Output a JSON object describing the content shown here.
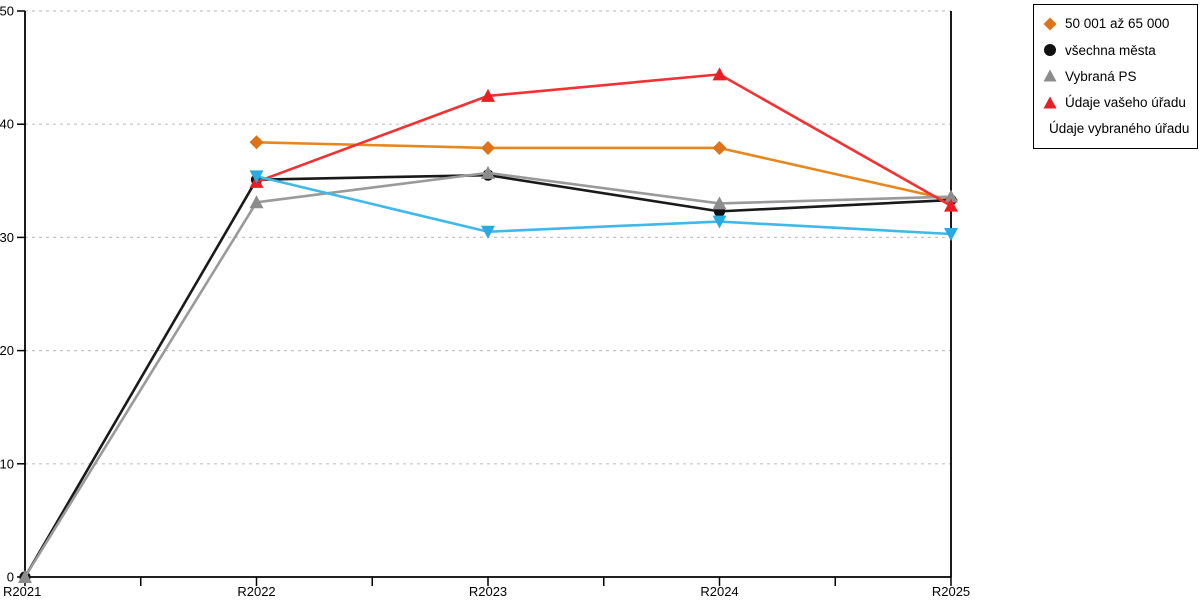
{
  "chart_data": {
    "type": "line",
    "categories": [
      "R2021",
      "R2022",
      "R2023",
      "R2024",
      "R2025"
    ],
    "series": [
      {
        "name": "50 001 až 65 000",
        "marker": "diamond",
        "color": "#DE731A",
        "line_color": "#E8871E",
        "values": [
          null,
          38.4,
          37.9,
          37.9,
          33.3
        ]
      },
      {
        "name": "všechna města",
        "marker": "circle",
        "color": "#111111",
        "line_color": "#1A1A1A",
        "values": [
          0,
          35.1,
          35.5,
          32.3,
          33.3
        ]
      },
      {
        "name": "Vybraná PS",
        "marker": "triangle-up",
        "color": "#8C8C8C",
        "line_color": "#9A9A9A",
        "values": [
          0,
          33.1,
          35.7,
          33.0,
          33.6
        ]
      },
      {
        "name": "Údaje vašeho úřadu",
        "marker": "triangle-up",
        "color": "#EB1C24",
        "line_color": "#F53030",
        "values": [
          null,
          34.9,
          42.5,
          44.4,
          32.8
        ]
      },
      {
        "name": "Údaje vybraného úřadu",
        "marker": "triangle-down",
        "color": "#29ABE2",
        "line_color": "#3FB9EA",
        "values": [
          null,
          35.4,
          30.5,
          31.4,
          30.3
        ]
      }
    ],
    "title": "",
    "xlabel": "",
    "ylabel": "",
    "ylim": [
      0,
      50
    ],
    "yticks": [
      0,
      10,
      20,
      30,
      40,
      50
    ],
    "grid": "horizontal dashed",
    "grid_color": "#C3C3C3",
    "axis_color": "#000000",
    "legend_position": "outside-top-right",
    "legend_border_color": "#000000"
  }
}
